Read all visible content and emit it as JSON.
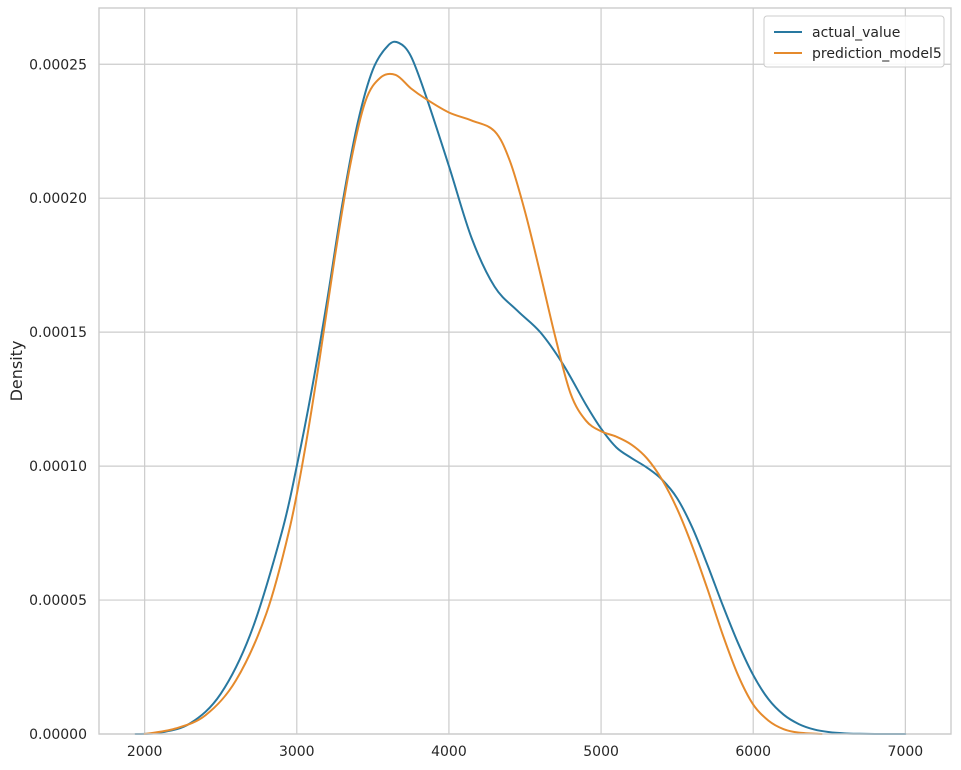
{
  "chart_data": {
    "type": "line",
    "title": "",
    "xlabel": "",
    "ylabel": "Density",
    "xlim": [
      1700,
      7300
    ],
    "ylim": [
      0,
      0.000271
    ],
    "grid": true,
    "legend_position": "top-right",
    "xticks": [
      {
        "value": 2000,
        "label": "2000"
      },
      {
        "value": 3000,
        "label": "3000"
      },
      {
        "value": 4000,
        "label": "4000"
      },
      {
        "value": 5000,
        "label": "5000"
      },
      {
        "value": 6000,
        "label": "6000"
      },
      {
        "value": 7000,
        "label": "7000"
      }
    ],
    "yticks": [
      {
        "value": 0,
        "label": "0.00000"
      },
      {
        "value": 5e-05,
        "label": "0.00005"
      },
      {
        "value": 0.0001,
        "label": "0.00010"
      },
      {
        "value": 0.00015,
        "label": "0.00015"
      },
      {
        "value": 0.0002,
        "label": "0.00020"
      },
      {
        "value": 0.00025,
        "label": "0.00025"
      }
    ],
    "series": [
      {
        "name": "actual_value",
        "color": "#2878a0",
        "x": [
          1940,
          2100,
          2300,
          2500,
          2700,
          2900,
          3000,
          3100,
          3200,
          3300,
          3400,
          3500,
          3600,
          3670,
          3750,
          3850,
          4000,
          4150,
          4300,
          4450,
          4600,
          4750,
          4900,
          5000,
          5100,
          5200,
          5300,
          5400,
          5500,
          5600,
          5700,
          5800,
          5900,
          6000,
          6100,
          6200,
          6300,
          6400,
          6500,
          6600,
          6700,
          6800,
          6900,
          7000
        ],
        "y": [
          0.0,
          5e-07,
          4e-06,
          1.5e-05,
          3.8e-05,
          7.5e-05,
          0.0001,
          0.000129,
          0.000162,
          0.000198,
          0.000228,
          0.000248,
          0.000257,
          0.000258,
          0.000253,
          0.000238,
          0.000212,
          0.000185,
          0.000167,
          0.000158,
          0.00015,
          0.000138,
          0.000123,
          0.000114,
          0.000107,
          0.000103,
          9.95e-05,
          9.5e-05,
          8.8e-05,
          7.7e-05,
          6.3e-05,
          4.8e-05,
          3.4e-05,
          2.2e-05,
          1.3e-05,
          7.2e-06,
          3.7e-06,
          1.7e-06,
          7e-07,
          2.5e-07,
          8e-08,
          2e-08,
          0.0,
          0.0
        ]
      },
      {
        "name": "prediction_model5",
        "color": "#e58a2c",
        "x": [
          2000,
          2200,
          2400,
          2600,
          2800,
          2950,
          3050,
          3150,
          3250,
          3350,
          3450,
          3550,
          3650,
          3750,
          3850,
          4000,
          4150,
          4300,
          4400,
          4500,
          4600,
          4700,
          4800,
          4900,
          5000,
          5100,
          5200,
          5300,
          5400,
          5500,
          5600,
          5700,
          5800,
          5900,
          6000,
          6100,
          6200,
          6300,
          6450
        ],
        "y": [
          0.0,
          2e-06,
          7e-06,
          2e-05,
          4.5e-05,
          7.6e-05,
          0.000105,
          0.00014,
          0.000178,
          0.000212,
          0.000236,
          0.000245,
          0.000246,
          0.000241,
          0.000237,
          0.000232,
          0.000229,
          0.000225,
          0.000214,
          0.000195,
          0.000172,
          0.000148,
          0.000127,
          0.000117,
          0.000113,
          0.000111,
          0.000108,
          0.000103,
          9.5e-05,
          8.4e-05,
          7e-05,
          5.4e-05,
          3.7e-05,
          2.2e-05,
          1.1e-05,
          5e-06,
          1.8e-06,
          5e-07,
          0.0
        ]
      }
    ]
  }
}
